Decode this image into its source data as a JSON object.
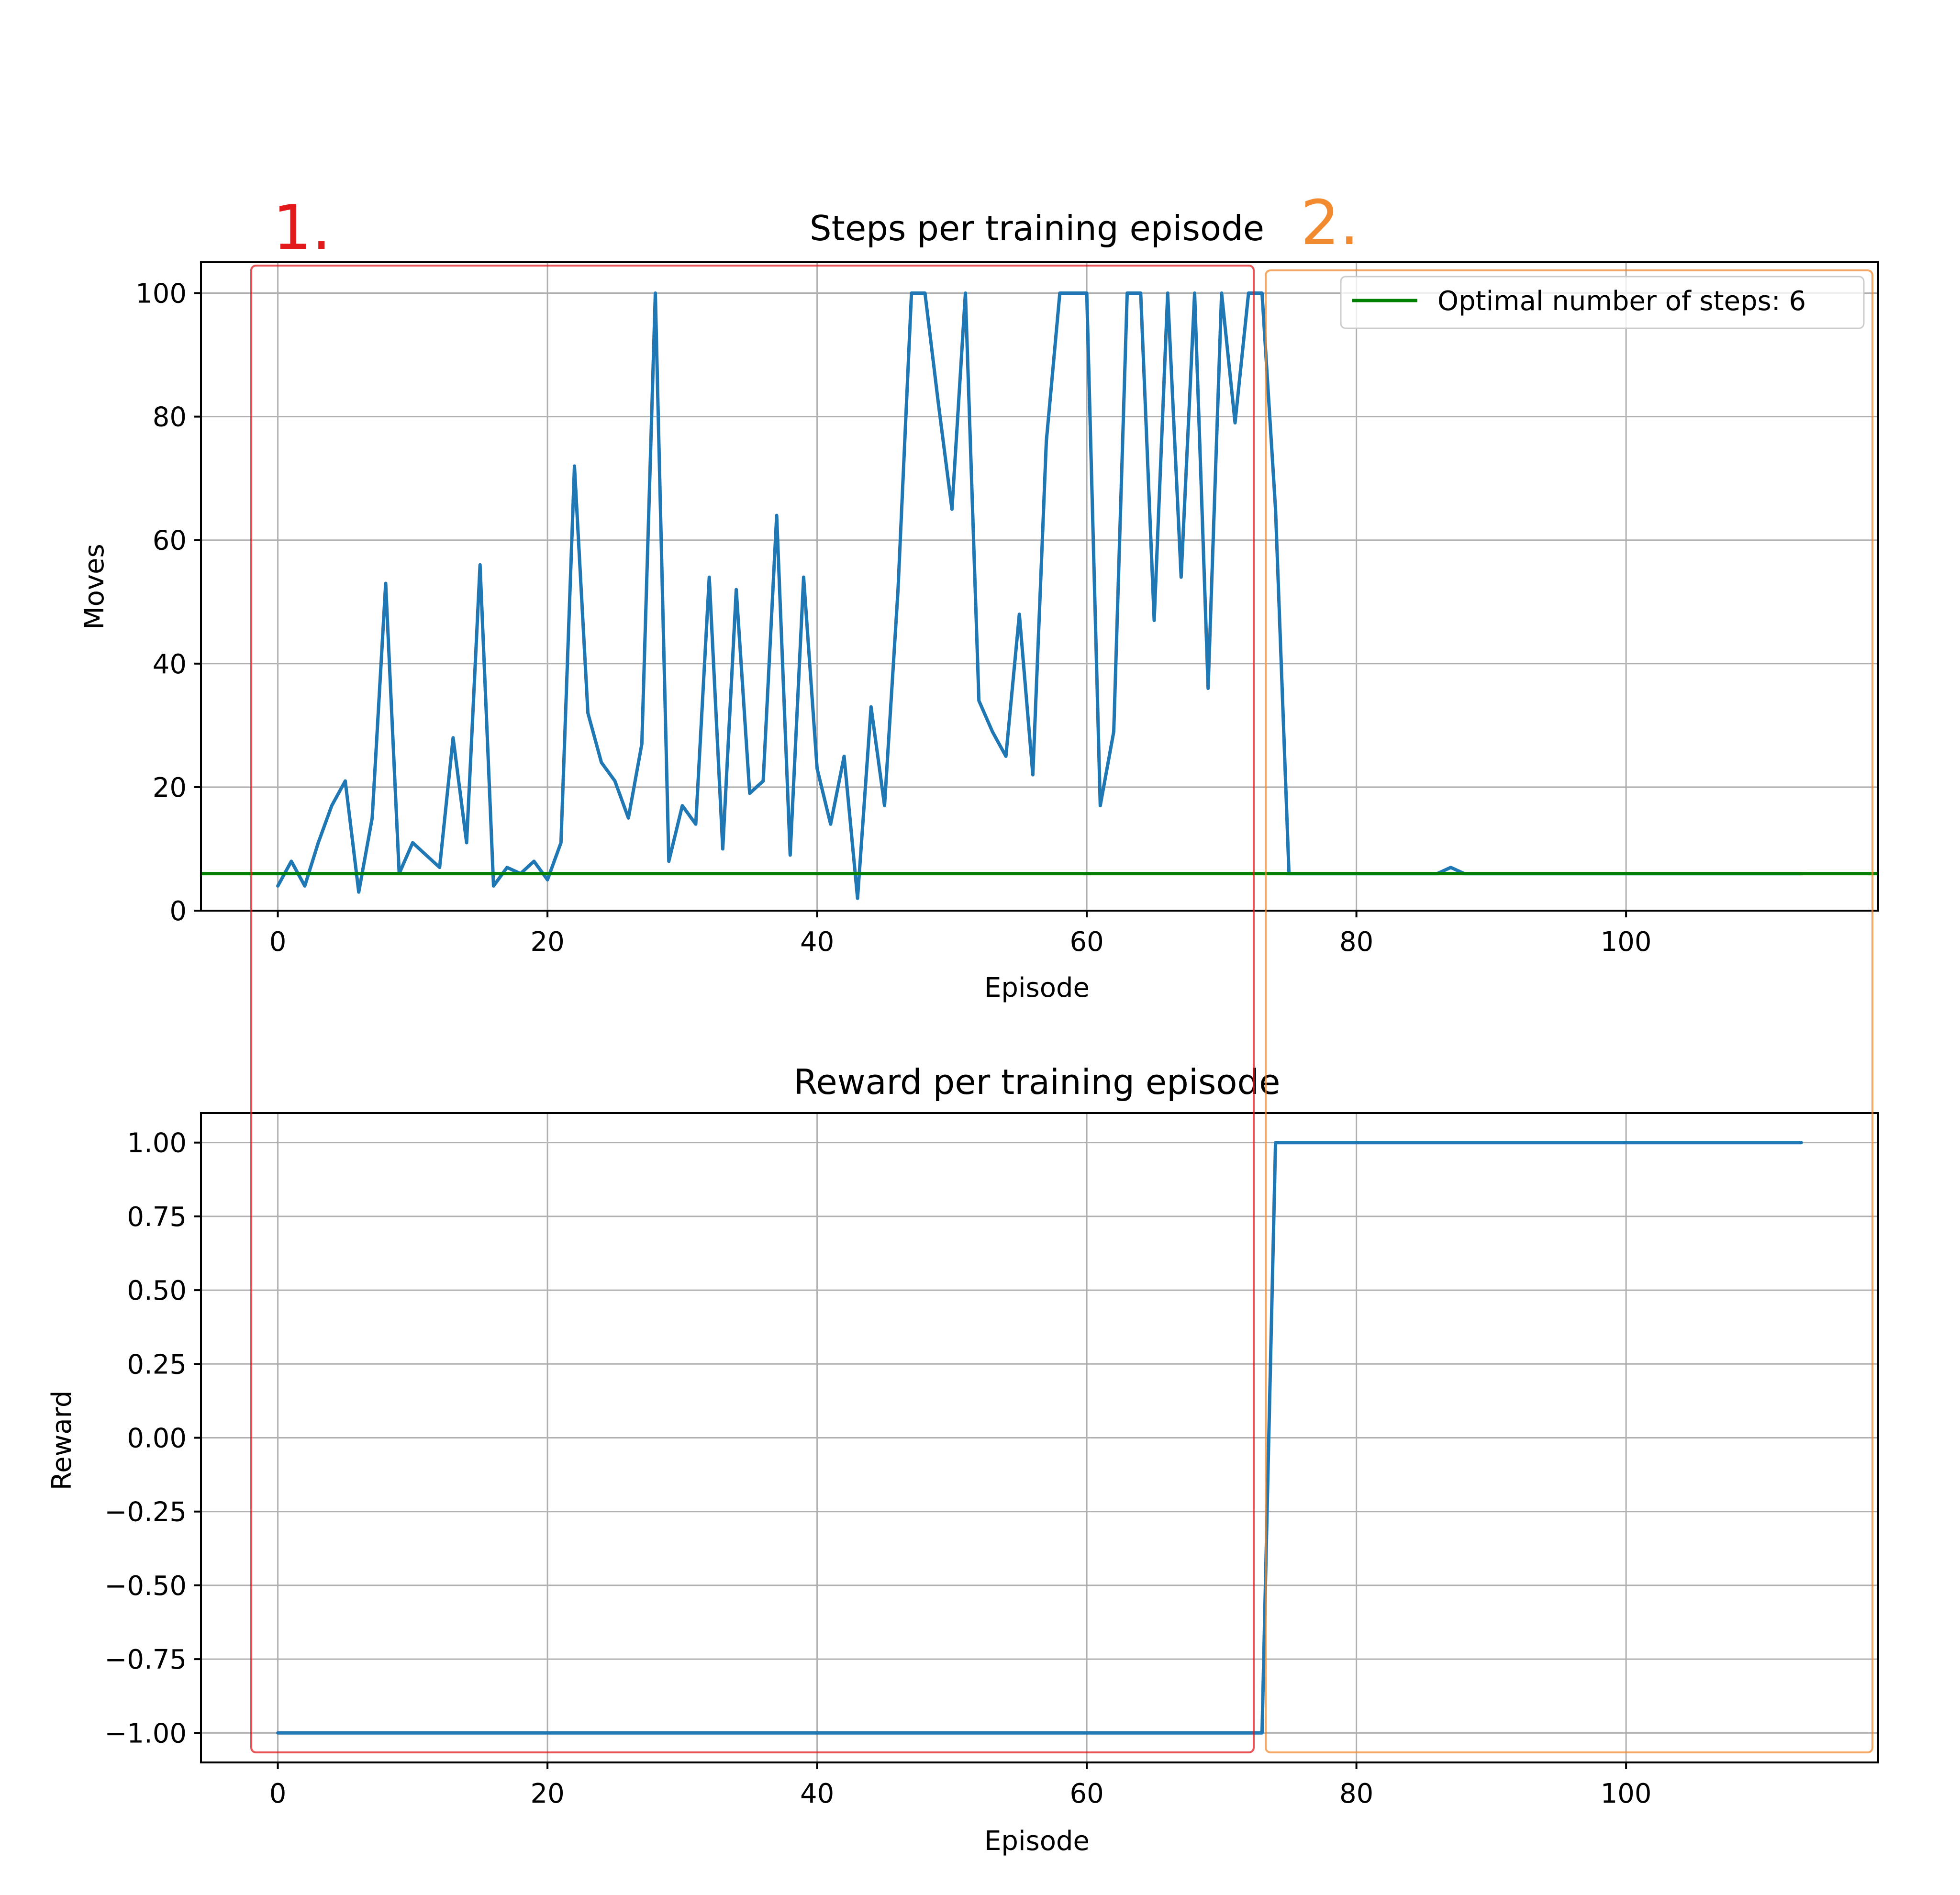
{
  "colors": {
    "series": "#1f77b4",
    "optimal": "#008000",
    "region1": "#e31a1c",
    "region2": "#f28a30"
  },
  "annotations": {
    "region1_label": "1.",
    "region2_label": "2."
  },
  "chart_data": [
    {
      "type": "line",
      "title": "Steps per training episode",
      "xlabel": "Episode",
      "ylabel": "Moves",
      "xlim": [
        -5.7,
        118.7
      ],
      "ylim": [
        0,
        105
      ],
      "xticks": [
        0,
        20,
        40,
        60,
        80,
        100
      ],
      "yticks": [
        0,
        20,
        40,
        60,
        80,
        100
      ],
      "grid": true,
      "legend_position": "upper-right",
      "series": [
        {
          "color": "#1f77b4",
          "x": [
            0,
            1,
            2,
            3,
            4,
            5,
            6,
            7,
            8,
            9,
            10,
            11,
            12,
            13,
            14,
            15,
            16,
            17,
            18,
            19,
            20,
            21,
            22,
            23,
            24,
            25,
            26,
            27,
            28,
            29,
            30,
            31,
            32,
            33,
            34,
            35,
            36,
            37,
            38,
            39,
            40,
            41,
            42,
            43,
            44,
            45,
            46,
            47,
            48,
            49,
            50,
            51,
            52,
            53,
            54,
            55,
            56,
            57,
            58,
            59,
            60,
            61,
            62,
            63,
            64,
            65,
            66,
            67,
            68,
            69,
            70,
            71,
            72,
            73,
            74,
            75,
            76,
            77,
            78,
            79,
            80,
            81,
            82,
            83,
            84,
            85,
            86,
            87,
            88,
            89,
            90,
            91,
            92,
            93,
            94,
            95,
            96,
            97,
            98,
            99,
            100,
            101,
            102,
            103,
            104,
            105,
            106,
            107,
            108,
            109,
            110,
            111,
            112,
            113
          ],
          "y": [
            4,
            8,
            4,
            11,
            17,
            21,
            3,
            15,
            53,
            6,
            11,
            9,
            7,
            28,
            11,
            56,
            4,
            7,
            6,
            8,
            5,
            11,
            72,
            32,
            24,
            21,
            15,
            27,
            100,
            8,
            17,
            14,
            54,
            10,
            52,
            19,
            21,
            64,
            9,
            54,
            23,
            14,
            25,
            2,
            33,
            17,
            52,
            100,
            100,
            82,
            65,
            100,
            34,
            29,
            25,
            48,
            22,
            76,
            100,
            100,
            100,
            17,
            29,
            100,
            100,
            47,
            100,
            54,
            100,
            36,
            100,
            79,
            100,
            100,
            65,
            6,
            6,
            6,
            6,
            6,
            6,
            6,
            6,
            6,
            6,
            6,
            6,
            7,
            6,
            6,
            6,
            6,
            6,
            6,
            6,
            6,
            6,
            6,
            6,
            6,
            6,
            6,
            6,
            6,
            6,
            6,
            6,
            6,
            6,
            6,
            6,
            6,
            6,
            6
          ]
        },
        {
          "name": "Optimal number of steps: 6",
          "color": "#008000",
          "kind": "hline",
          "y": 6
        }
      ]
    },
    {
      "type": "line",
      "title": "Reward per training episode",
      "xlabel": "Episode",
      "ylabel": "Reward",
      "xlim": [
        -5.7,
        118.7
      ],
      "ylim": [
        -1.1,
        1.1
      ],
      "xticks": [
        0,
        20,
        40,
        60,
        80,
        100
      ],
      "yticks": [
        1.0,
        0.75,
        0.5,
        0.25,
        0.0,
        -0.25,
        -0.5,
        -0.75,
        -1.0
      ],
      "ytick_labels": [
        "1.00",
        "0.75",
        "0.50",
        "0.25",
        "0.00",
        "−0.25",
        "−0.50",
        "−0.75",
        "−1.00"
      ],
      "grid": true,
      "series": [
        {
          "color": "#1f77b4",
          "x": [
            0,
            73,
            74,
            113
          ],
          "y": [
            -1,
            -1,
            1,
            1
          ]
        }
      ]
    }
  ]
}
